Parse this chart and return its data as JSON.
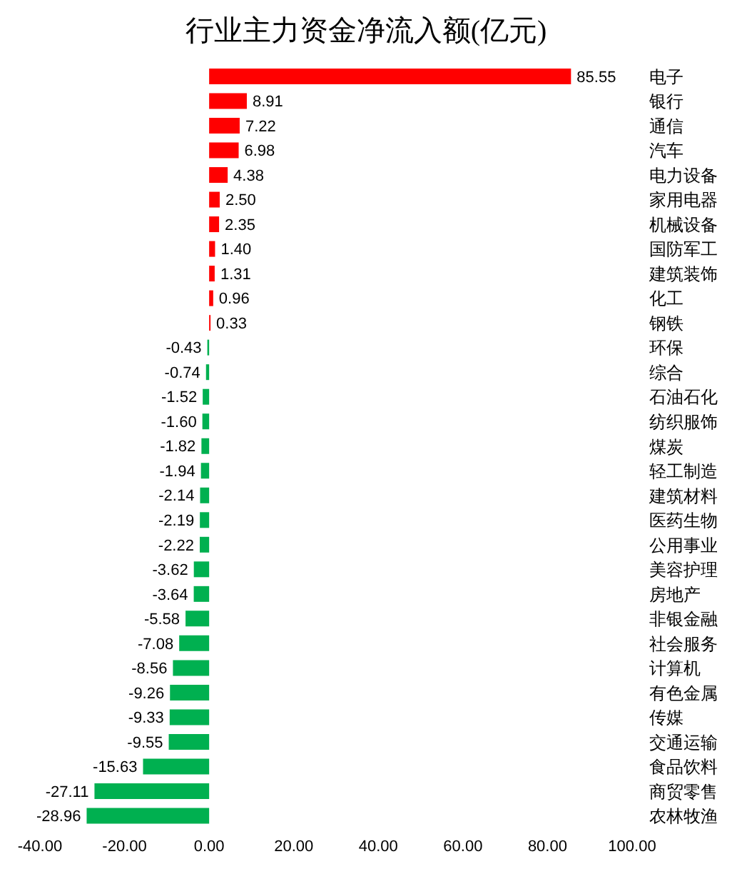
{
  "chart_data": {
    "type": "bar",
    "orientation": "horizontal",
    "title": "行业主力资金净流入额(亿元)",
    "categories": [
      "电子",
      "银行",
      "通信",
      "汽车",
      "电力设备",
      "家用电器",
      "机械设备",
      "国防军工",
      "建筑装饰",
      "化工",
      "钢铁",
      "环保",
      "综合",
      "石油石化",
      "纺织服饰",
      "煤炭",
      "轻工制造",
      "建筑材料",
      "医药生物",
      "公用事业",
      "美容护理",
      "房地产",
      "非银金融",
      "社会服务",
      "计算机",
      "有色金属",
      "传媒",
      "交通运输",
      "食品饮料",
      "商贸零售",
      "农林牧渔"
    ],
    "values": [
      85.55,
      8.91,
      7.22,
      6.98,
      4.38,
      2.5,
      2.35,
      1.4,
      1.31,
      0.96,
      0.33,
      -0.43,
      -0.74,
      -1.52,
      -1.6,
      -1.82,
      -1.94,
      -2.14,
      -2.19,
      -2.22,
      -3.62,
      -3.64,
      -5.58,
      -7.08,
      -8.56,
      -9.26,
      -9.33,
      -9.55,
      -15.63,
      -27.11,
      -28.96
    ],
    "value_labels": [
      "85.55",
      "8.91",
      "7.22",
      "6.98",
      "4.38",
      "2.50",
      "2.35",
      "1.40",
      "1.31",
      "0.96",
      "0.33",
      "-0.43",
      "-0.74",
      "-1.52",
      "-1.60",
      "-1.82",
      "-1.94",
      "-2.14",
      "-2.19",
      "-2.22",
      "-3.62",
      "-3.64",
      "-5.58",
      "-7.08",
      "-8.56",
      "-9.26",
      "-9.33",
      "-9.55",
      "-15.63",
      "-27.11",
      "-28.96"
    ],
    "colors": [
      "#ff0000",
      "#ff0000",
      "#ff0000",
      "#ff0000",
      "#ff0000",
      "#ff0000",
      "#ff0000",
      "#ff0000",
      "#ff0000",
      "#ff0000",
      "#ff0000",
      "#00b050",
      "#00b050",
      "#00b050",
      "#00b050",
      "#00b050",
      "#00b050",
      "#00b050",
      "#00b050",
      "#00b050",
      "#00b050",
      "#00b050",
      "#00b050",
      "#00b050",
      "#00b050",
      "#00b050",
      "#00b050",
      "#00b050",
      "#00b050",
      "#00b050",
      "#00b050"
    ],
    "xlim": [
      -40,
      100
    ],
    "xticks": [
      {
        "value": -40,
        "label": "-40.00"
      },
      {
        "value": -20,
        "label": "-20.00"
      },
      {
        "value": 0,
        "label": "0.00"
      },
      {
        "value": 20,
        "label": "20.00"
      },
      {
        "value": 40,
        "label": "40.00"
      },
      {
        "value": 60,
        "label": "60.00"
      },
      {
        "value": 80,
        "label": "80.00"
      },
      {
        "value": 100,
        "label": "100.00"
      }
    ],
    "grid": false
  }
}
